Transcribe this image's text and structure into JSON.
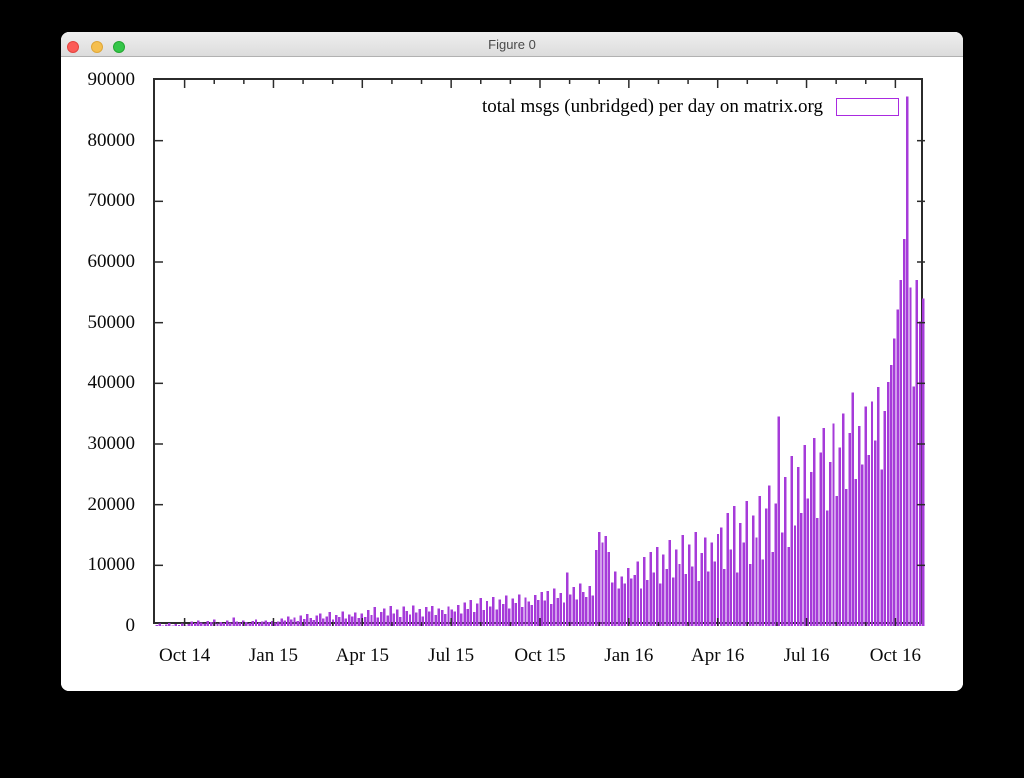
{
  "window": {
    "title": "Figure 0",
    "buttons": {
      "close": "close",
      "minimize": "minimize",
      "zoom": "zoom"
    }
  },
  "colors": {
    "series": "#a63bd9",
    "legend_box": "#aa2ae0",
    "axis": "#2b2b2b",
    "background": "#ffffff",
    "desktop": "#000000"
  },
  "chart_data": {
    "type": "bar",
    "legend_label": "total msgs (unbridged) per day on matrix.org",
    "ylim": [
      0,
      90000
    ],
    "y_ticks": [
      0,
      10000,
      20000,
      30000,
      40000,
      50000,
      60000,
      70000,
      80000,
      90000
    ],
    "x_range": [
      "Sep 2014",
      "Nov 2016"
    ],
    "x_month_span": 26,
    "x_major_months": [
      1,
      4,
      7,
      10,
      13,
      16,
      19,
      22,
      25
    ],
    "x_tick_labels": [
      "Oct 14",
      "Jan 15",
      "Apr 15",
      "Jul 15",
      "Oct 15",
      "Jan 16",
      "Apr 16",
      "Jul 16",
      "Oct 16"
    ],
    "legend_position": "top-right",
    "grid": false,
    "values": [
      150,
      420,
      80,
      260,
      510,
      120,
      330,
      190,
      450,
      90,
      350,
      720,
      480,
      900,
      560,
      380,
      820,
      640,
      1050,
      450,
      700,
      520,
      880,
      610,
      1400,
      760,
      540,
      930,
      670,
      480,
      850,
      1100,
      590,
      720,
      940,
      630,
      810,
      560,
      780,
      1250,
      920,
      1600,
      1050,
      1380,
      840,
      1750,
      1150,
      1950,
      1300,
      960,
      1700,
      2100,
      1250,
      1550,
      2300,
      1100,
      1850,
      1450,
      2400,
      1200,
      1900,
      1600,
      2200,
      1350,
      2050,
      1500,
      2600,
      1800,
      3100,
      1400,
      2300,
      2900,
      1700,
      3300,
      2100,
      2700,
      1500,
      3200,
      2500,
      1900,
      3400,
      2200,
      2800,
      1600,
      3100,
      2400,
      3300,
      1800,
      2900,
      2600,
      2000,
      3200,
      2700,
      2400,
      3500,
      2100,
      3900,
      2800,
      4300,
      2300,
      3700,
      4600,
      2600,
      4100,
      3200,
      4800,
      2700,
      4400,
      3600,
      5000,
      2900,
      4500,
      3800,
      5200,
      3100,
      4700,
      4000,
      3500,
      5100,
      4300,
      5600,
      4200,
      5800,
      3600,
      6200,
      4600,
      5400,
      3900,
      8800,
      5200,
      6400,
      4400,
      7000,
      5600,
      4800,
      6600,
      5000,
      12500,
      15500,
      13800,
      14800,
      12200,
      7200,
      9000,
      6200,
      8200,
      7000,
      9600,
      7800,
      8400,
      10600,
      6200,
      11400,
      7600,
      12200,
      8800,
      13000,
      7000,
      11800,
      9400,
      14200,
      8000,
      12600,
      10200,
      15000,
      8600,
      13400,
      9800,
      15500,
      7400,
      12000,
      14600,
      9000,
      13800,
      10600,
      15200,
      16200,
      9400,
      18600,
      12600,
      19800,
      8800,
      17000,
      13800,
      20600,
      10200,
      18200,
      14600,
      21400,
      11000,
      19400,
      23200,
      12200,
      20200,
      34500,
      15400,
      24600,
      13000,
      28000,
      16600,
      26200,
      18600,
      29800,
      21000,
      25400,
      31000,
      17800,
      28600,
      32600,
      19000,
      27000,
      33400,
      21400,
      29400,
      35000,
      22600,
      31800,
      38500,
      24200,
      33000,
      26600,
      36200,
      28200,
      37000,
      30600,
      39400,
      25800,
      35400,
      40200,
      43000,
      47400,
      52200,
      57000,
      63800,
      87300,
      55800,
      39500,
      57000,
      50200,
      54000
    ]
  }
}
